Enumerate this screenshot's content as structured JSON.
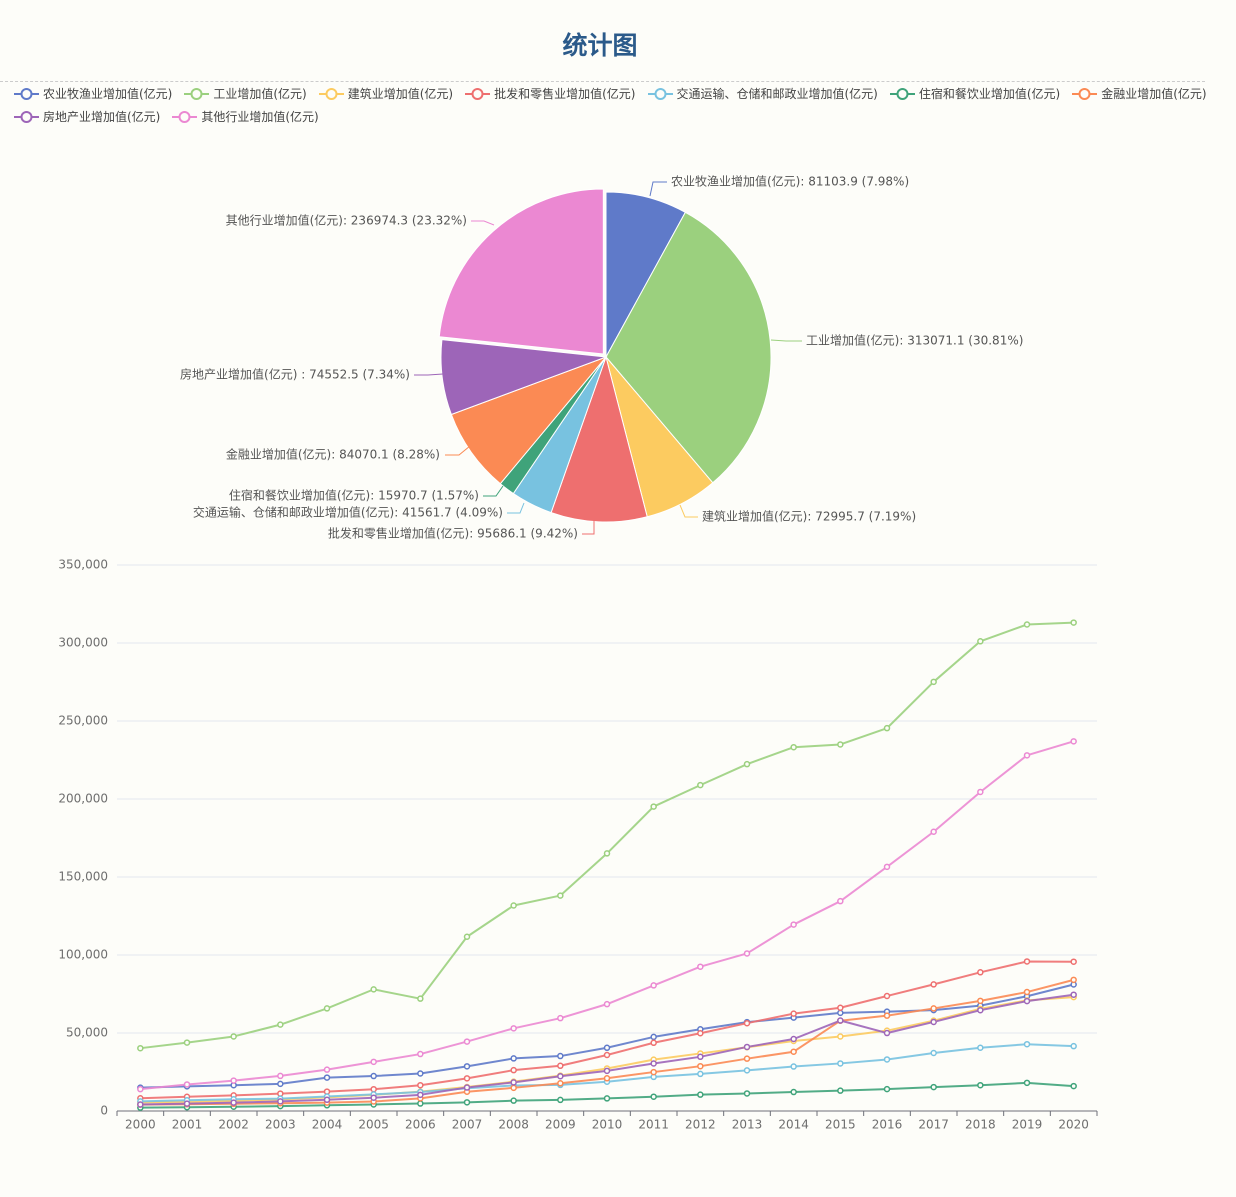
{
  "title": "统计图",
  "colors": [
    "#5f7ac9",
    "#9bd07e",
    "#fccb60",
    "#ee6f6f",
    "#78c2e0",
    "#3fa37a",
    "#fb8a54",
    "#9d65b8",
    "#eb88d2"
  ],
  "chart_data": [
    {
      "type": "pie",
      "slices": [
        {
          "name": "农业牧渔业增加值(亿元)",
          "value": 81103.9,
          "label": "农业牧渔业增加值(亿元): 81103.9 (7.98%)"
        },
        {
          "name": "工业增加值(亿元)",
          "value": 313071.1,
          "label": "工业增加值(亿元): 313071.1 (30.81%)"
        },
        {
          "name": "建筑业增加值(亿元)",
          "value": 72995.7,
          "label": "建筑业增加值(亿元): 72995.7 (7.19%)"
        },
        {
          "name": "批发和零售业增加值(亿元)",
          "value": 95686.1,
          "label": "批发和零售业增加值(亿元): 95686.1 (9.42%)"
        },
        {
          "name": "交通运输、仓储和邮政业增加值(亿元)",
          "value": 41561.7,
          "label": "交通运输、仓储和邮政业增加值(亿元): 41561.7 (4.09%)"
        },
        {
          "name": "住宿和餐饮业增加值(亿元)",
          "value": 15970.7,
          "label": "住宿和餐饮业增加值(亿元): 15970.7 (1.57%)"
        },
        {
          "name": "金融业增加值(亿元)",
          "value": 84070.1,
          "label": "金融业增加值(亿元): 84070.1 (8.28%)"
        },
        {
          "name": "房地产业增加值(亿元)",
          "value": 74552.5,
          "label": "房地产业增加值(亿元) : 74552.5 (7.34%)"
        },
        {
          "name": "其他行业增加值(亿元)",
          "value": 236974.3,
          "label": "其他行业增加值(亿元): 236974.3 (23.32%)"
        }
      ]
    },
    {
      "type": "line",
      "x": [
        "2000",
        "2001",
        "2002",
        "2003",
        "2004",
        "2005",
        "2006",
        "2007",
        "2008",
        "2009",
        "2010",
        "2011",
        "2012",
        "2013",
        "2014",
        "2015",
        "2016",
        "2017",
        "2018",
        "2019",
        "2020"
      ],
      "ylim": [
        0,
        350000
      ],
      "yticks": [
        0,
        50000,
        100000,
        150000,
        200000,
        250000,
        300000,
        350000
      ],
      "ytick_labels": [
        "0",
        "50,000",
        "100,000",
        "150,000",
        "200,000",
        "250,000",
        "300,000",
        "350,000"
      ],
      "grid": true,
      "series": [
        {
          "name": "农业牧渔业增加值(亿元)",
          "values": [
            14945,
            15781,
            16537,
            17382,
            21413,
            22420,
            24040,
            28627,
            33702,
            35226,
            40534,
            47486,
            52374,
            56957,
            59852,
            62904,
            63672,
            64660,
            67558,
            73577,
            81104
          ]
        },
        {
          "name": "工业增加值(亿元)",
          "values": [
            40260,
            43855,
            47777,
            55364,
            65776,
            77961,
            72000,
            111694,
            131724,
            138096,
            165126,
            195143,
            208906,
            222338,
            233197,
            234969,
            245406,
            275119,
            301089,
            311859,
            313071
          ]
        },
        {
          "name": "建筑业增加值(亿元)",
          "values": [
            5522,
            5932,
            6465,
            7490,
            8694,
            10367,
            12409,
            15348,
            18807,
            22682,
            27259,
            32926,
            36896,
            40897,
            44881,
            47761,
            51499,
            57906,
            65493,
            70904,
            72996
          ]
        },
        {
          "name": "批发和零售业增加值(亿元)",
          "values": [
            8159,
            9119,
            9995,
            11170,
            12454,
            13967,
            16531,
            20938,
            26182,
            28984,
            35904,
            43731,
            49831,
            56285,
            62424,
            66187,
            73724,
            81157,
            88904,
            95846,
            95686
          ]
        },
        {
          "name": "交通运输、仓储和邮政业增加值(亿元)",
          "values": [
            6161,
            6871,
            7494,
            7914,
            9304,
            10666,
            12183,
            14601,
            16363,
            16727,
            18784,
            21842,
            23763,
            26042,
            28500,
            30488,
            33028,
            37173,
            40550,
            42802,
            41562
          ]
        },
        {
          "name": "住宿和餐饮业增加值(亿元)",
          "values": [
            2146,
            2400,
            2724,
            3126,
            3665,
            4195,
            4792,
            5548,
            6616,
            7118,
            8068,
            9173,
            10464,
            11228,
            12159,
            13036,
            14025,
            15314,
            16520,
            18040,
            15971
          ]
        },
        {
          "name": "金融业增加值(亿元)",
          "values": [
            4086,
            4354,
            4613,
            4989,
            5393,
            6086,
            8099,
            12337,
            14863,
            17768,
            20981,
            24958,
            28723,
            33535,
            38000,
            57873,
            61121,
            65749,
            70610,
            76251,
            84070
          ]
        },
        {
          "name": "房地产业增加值(亿元)",
          "values": [
            4149,
            4715,
            5346,
            6172,
            7174,
            8517,
            10370,
            15037,
            18348,
            22290,
            25750,
            30457,
            34736,
            41061,
            46150,
            58000,
            49970,
            57086,
            64623,
            70445,
            74553
          ]
        },
        {
          "name": "其他行业增加值(亿元)",
          "values": [
            14000,
            17000,
            19500,
            22500,
            26500,
            31500,
            36500,
            44500,
            53000,
            59500,
            68500,
            80500,
            92500,
            101000,
            119500,
            134500,
            156500,
            179000,
            204500,
            228000,
            236974
          ]
        }
      ]
    }
  ]
}
